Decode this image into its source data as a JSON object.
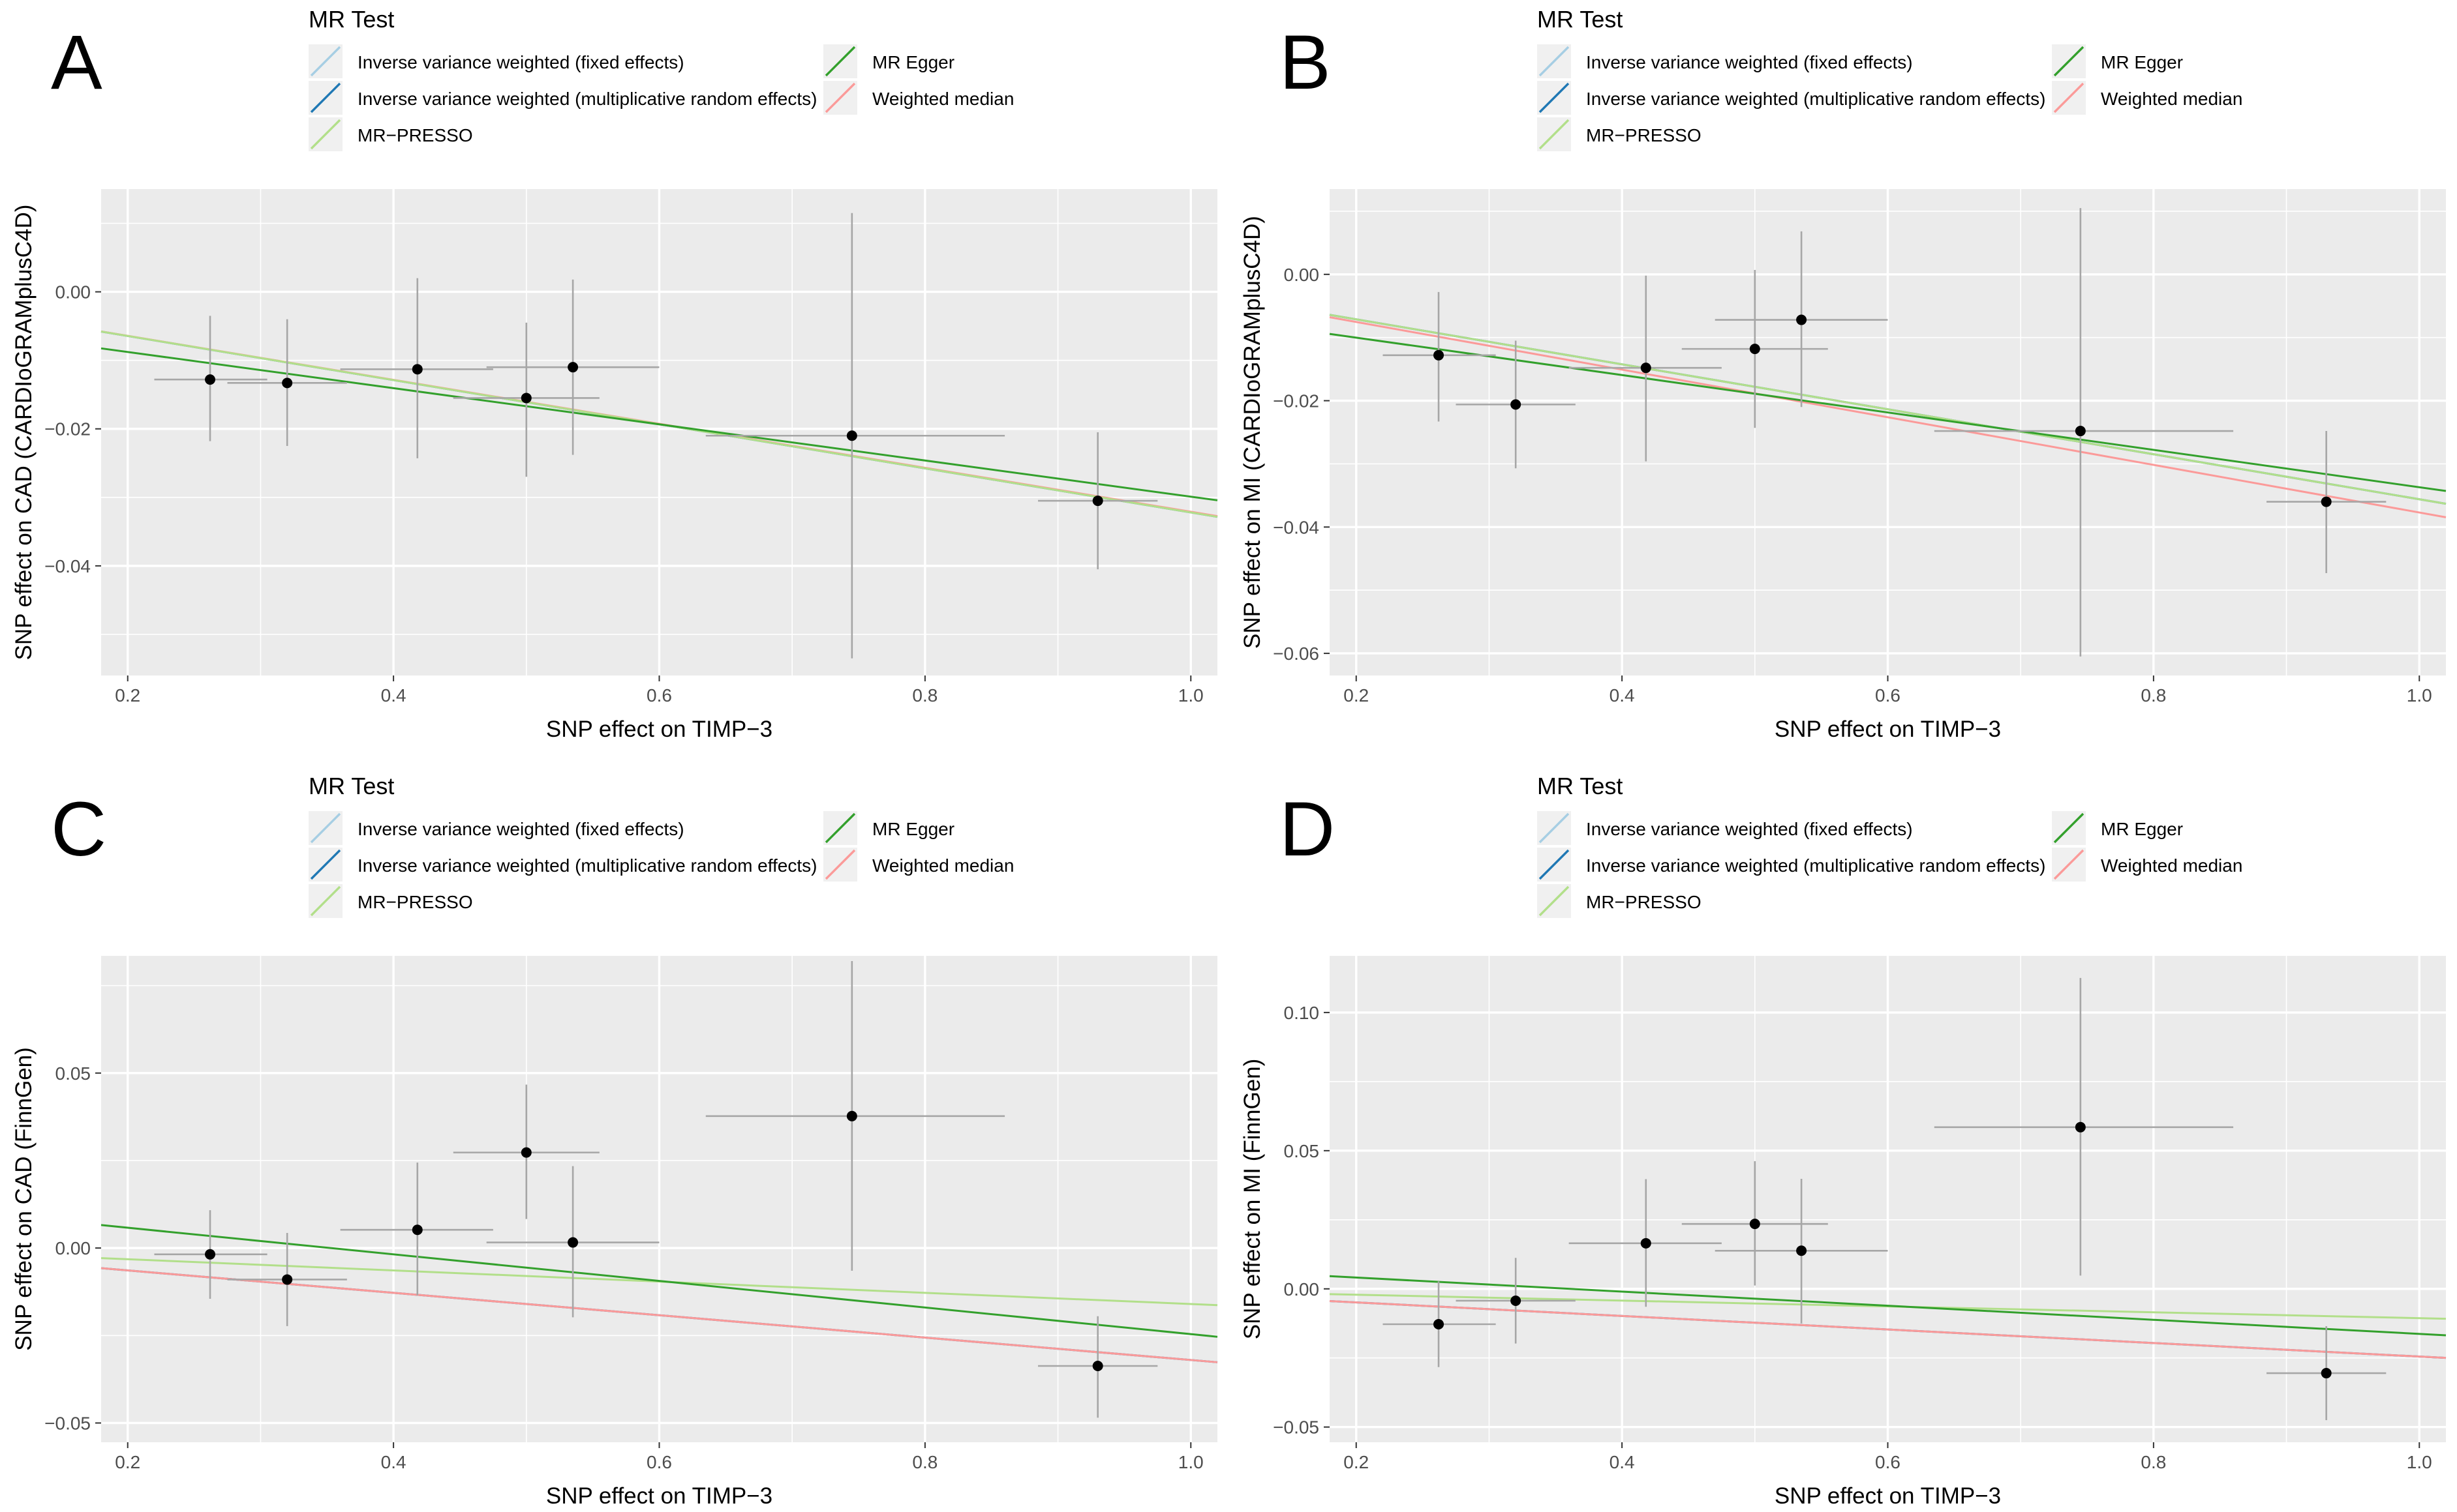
{
  "legend": {
    "title": "MR Test",
    "entries": [
      {
        "label": "Inverse variance weighted (fixed effects)",
        "color": "#a6cee3"
      },
      {
        "label": "Inverse variance weighted (multiplicative random effects)",
        "color": "#1f78b4"
      },
      {
        "label": "MR−PRESSO",
        "color": "#b2df8a"
      },
      {
        "label": "MR Egger",
        "color": "#33a02c"
      },
      {
        "label": "Weighted median",
        "color": "#fb9a99"
      }
    ]
  },
  "chart_data": [
    {
      "panel": "A",
      "type": "scatter",
      "xlabel": "SNP effect on TIMP−3",
      "ylabel": "SNP effect on CAD (CARDIoGRAMplusC4D)",
      "xlim": [
        0.18,
        1.02
      ],
      "ylim": [
        -0.056,
        0.015
      ],
      "x_ticks": [
        0.2,
        0.4,
        0.6,
        0.8,
        1.0
      ],
      "x_tick_labels": [
        "0.2",
        "0.4",
        "0.6",
        "0.8",
        "1.0"
      ],
      "y_ticks": [
        0.0,
        -0.02,
        -0.04
      ],
      "y_tick_labels": [
        "0.00",
        "−0.02",
        "−0.04"
      ],
      "points": [
        {
          "x": 0.262,
          "y": -0.0128,
          "x_lo": 0.22,
          "x_hi": 0.305,
          "y_lo": -0.0218,
          "y_hi": -0.0035
        },
        {
          "x": 0.32,
          "y": -0.0133,
          "x_lo": 0.275,
          "x_hi": 0.365,
          "y_lo": -0.0225,
          "y_hi": -0.004
        },
        {
          "x": 0.418,
          "y": -0.0113,
          "x_lo": 0.36,
          "x_hi": 0.475,
          "y_lo": -0.0243,
          "y_hi": 0.002
        },
        {
          "x": 0.5,
          "y": -0.0155,
          "x_lo": 0.445,
          "x_hi": 0.555,
          "y_lo": -0.027,
          "y_hi": -0.0045
        },
        {
          "x": 0.535,
          "y": -0.011,
          "x_lo": 0.47,
          "x_hi": 0.6,
          "y_lo": -0.0238,
          "y_hi": 0.0018
        },
        {
          "x": 0.745,
          "y": -0.021,
          "x_lo": 0.635,
          "x_hi": 0.86,
          "y_lo": -0.0535,
          "y_hi": 0.0115
        },
        {
          "x": 0.93,
          "y": -0.0305,
          "x_lo": 0.885,
          "x_hi": 0.975,
          "y_lo": -0.0405,
          "y_hi": -0.0205
        }
      ],
      "lines": [
        {
          "method": "Inverse variance weighted (fixed effects)",
          "slope": -0.0322,
          "intercept": 0.0
        },
        {
          "method": "Inverse variance weighted (multiplicative random effects)",
          "slope": -0.0322,
          "intercept": 0.0
        },
        {
          "method": "MR−PRESSO",
          "slope": -0.0322,
          "intercept": 0.0
        },
        {
          "method": "Weighted median",
          "slope": -0.0321,
          "intercept": 0.0
        },
        {
          "method": "MR Egger",
          "slope": -0.0264,
          "intercept": -0.0035
        }
      ]
    },
    {
      "panel": "B",
      "type": "scatter",
      "xlabel": "SNP effect on TIMP−3",
      "ylabel": "SNP effect on MI (CARDIoGRAMplusC4D)",
      "xlim": [
        0.18,
        1.02
      ],
      "ylim": [
        -0.0635,
        0.0135
      ],
      "x_ticks": [
        0.2,
        0.4,
        0.6,
        0.8,
        1.0
      ],
      "x_tick_labels": [
        "0.2",
        "0.4",
        "0.6",
        "0.8",
        "1.0"
      ],
      "y_ticks": [
        0.0,
        -0.02,
        -0.04,
        -0.06
      ],
      "y_tick_labels": [
        "0.00",
        "−0.02",
        "−0.04",
        "−0.06"
      ],
      "points": [
        {
          "x": 0.262,
          "y": -0.0128,
          "x_lo": 0.22,
          "x_hi": 0.305,
          "y_lo": -0.0233,
          "y_hi": -0.0028
        },
        {
          "x": 0.32,
          "y": -0.0206,
          "x_lo": 0.275,
          "x_hi": 0.365,
          "y_lo": -0.0307,
          "y_hi": -0.0105
        },
        {
          "x": 0.418,
          "y": -0.0148,
          "x_lo": 0.36,
          "x_hi": 0.475,
          "y_lo": -0.0296,
          "y_hi": -0.0002
        },
        {
          "x": 0.5,
          "y": -0.0118,
          "x_lo": 0.445,
          "x_hi": 0.555,
          "y_lo": -0.0243,
          "y_hi": 0.0007
        },
        {
          "x": 0.535,
          "y": -0.0072,
          "x_lo": 0.47,
          "x_hi": 0.6,
          "y_lo": -0.021,
          "y_hi": 0.0068
        },
        {
          "x": 0.745,
          "y": -0.0248,
          "x_lo": 0.635,
          "x_hi": 0.86,
          "y_lo": -0.0605,
          "y_hi": 0.0105
        },
        {
          "x": 0.93,
          "y": -0.036,
          "x_lo": 0.885,
          "x_hi": 0.975,
          "y_lo": -0.0473,
          "y_hi": -0.0248
        }
      ],
      "lines": [
        {
          "method": "Inverse variance weighted (fixed effects)",
          "slope": -0.0356,
          "intercept": 0.0
        },
        {
          "method": "Inverse variance weighted (multiplicative random effects)",
          "slope": -0.0356,
          "intercept": 0.0
        },
        {
          "method": "MR−PRESSO",
          "slope": -0.0356,
          "intercept": 0.0
        },
        {
          "method": "Weighted median",
          "slope": -0.0377,
          "intercept": 0.0
        },
        {
          "method": "MR Egger",
          "slope": -0.0296,
          "intercept": -0.0041
        }
      ]
    },
    {
      "panel": "C",
      "type": "scatter",
      "xlabel": "SNP effect on TIMP−3",
      "ylabel": "SNP effect on CAD (FinnGen)",
      "xlim": [
        0.18,
        1.02
      ],
      "ylim": [
        -0.0555,
        0.0835
      ],
      "x_ticks": [
        0.2,
        0.4,
        0.6,
        0.8,
        1.0
      ],
      "x_tick_labels": [
        "0.2",
        "0.4",
        "0.6",
        "0.8",
        "1.0"
      ],
      "y_ticks": [
        0.05,
        0.0,
        -0.05
      ],
      "y_tick_labels": [
        "0.05",
        "0.00",
        "−0.05"
      ],
      "points": [
        {
          "x": 0.262,
          "y": -0.0018,
          "x_lo": 0.22,
          "x_hi": 0.305,
          "y_lo": -0.0145,
          "y_hi": 0.0108
        },
        {
          "x": 0.32,
          "y": -0.009,
          "x_lo": 0.275,
          "x_hi": 0.365,
          "y_lo": -0.0223,
          "y_hi": 0.0043
        },
        {
          "x": 0.418,
          "y": 0.0052,
          "x_lo": 0.36,
          "x_hi": 0.475,
          "y_lo": -0.0135,
          "y_hi": 0.0244
        },
        {
          "x": 0.5,
          "y": 0.0273,
          "x_lo": 0.445,
          "x_hi": 0.555,
          "y_lo": 0.0083,
          "y_hi": 0.0467
        },
        {
          "x": 0.535,
          "y": 0.0016,
          "x_lo": 0.47,
          "x_hi": 0.6,
          "y_lo": -0.0198,
          "y_hi": 0.0234
        },
        {
          "x": 0.745,
          "y": 0.0377,
          "x_lo": 0.635,
          "x_hi": 0.86,
          "y_lo": -0.0065,
          "y_hi": 0.082
        },
        {
          "x": 0.93,
          "y": -0.0337,
          "x_lo": 0.885,
          "x_hi": 0.975,
          "y_lo": -0.0485,
          "y_hi": -0.0195
        }
      ],
      "lines": [
        {
          "method": "Inverse variance weighted (fixed effects)",
          "slope": -0.032,
          "intercept": 0.0
        },
        {
          "method": "Inverse variance weighted (multiplicative random effects)",
          "slope": -0.032,
          "intercept": 0.0
        },
        {
          "method": "MR−PRESSO",
          "slope": -0.016,
          "intercept": 0.0
        },
        {
          "method": "Weighted median",
          "slope": -0.032,
          "intercept": 0.0
        },
        {
          "method": "MR Egger",
          "slope": -0.038,
          "intercept": 0.0134
        }
      ]
    },
    {
      "panel": "D",
      "type": "scatter",
      "xlabel": "SNP effect on TIMP−3",
      "ylabel": "SNP effect on MI (FinnGen)",
      "xlim": [
        0.18,
        1.02
      ],
      "ylim": [
        -0.0555,
        0.1205
      ],
      "x_ticks": [
        0.2,
        0.4,
        0.6,
        0.8,
        1.0
      ],
      "x_tick_labels": [
        "0.2",
        "0.4",
        "0.6",
        "0.8",
        "1.0"
      ],
      "y_ticks": [
        0.1,
        0.05,
        0.0,
        -0.05
      ],
      "y_tick_labels": [
        "0.10",
        "0.05",
        "0.00",
        "−0.05"
      ],
      "points": [
        {
          "x": 0.262,
          "y": -0.0128,
          "x_lo": 0.22,
          "x_hi": 0.305,
          "y_lo": -0.0283,
          "y_hi": 0.0027
        },
        {
          "x": 0.32,
          "y": -0.0043,
          "x_lo": 0.275,
          "x_hi": 0.365,
          "y_lo": -0.0198,
          "y_hi": 0.0112
        },
        {
          "x": 0.418,
          "y": 0.0165,
          "x_lo": 0.36,
          "x_hi": 0.475,
          "y_lo": -0.0065,
          "y_hi": 0.0397
        },
        {
          "x": 0.5,
          "y": 0.0235,
          "x_lo": 0.445,
          "x_hi": 0.555,
          "y_lo": 0.0012,
          "y_hi": 0.0462
        },
        {
          "x": 0.535,
          "y": 0.0138,
          "x_lo": 0.47,
          "x_hi": 0.6,
          "y_lo": -0.0125,
          "y_hi": 0.0398
        },
        {
          "x": 0.745,
          "y": 0.0585,
          "x_lo": 0.635,
          "x_hi": 0.86,
          "y_lo": 0.0048,
          "y_hi": 0.1125
        },
        {
          "x": 0.93,
          "y": -0.0305,
          "x_lo": 0.885,
          "x_hi": 0.975,
          "y_lo": -0.0475,
          "y_hi": -0.0135
        }
      ],
      "lines": [
        {
          "method": "Inverse variance weighted (fixed effects)",
          "slope": -0.0245,
          "intercept": 0.0
        },
        {
          "method": "Inverse variance weighted (multiplicative random effects)",
          "slope": -0.0245,
          "intercept": 0.0
        },
        {
          "method": "MR−PRESSO",
          "slope": -0.0106,
          "intercept": 0.0
        },
        {
          "method": "Weighted median",
          "slope": -0.0245,
          "intercept": 0.0
        },
        {
          "method": "MR Egger",
          "slope": -0.0255,
          "intercept": 0.0092
        }
      ]
    }
  ]
}
